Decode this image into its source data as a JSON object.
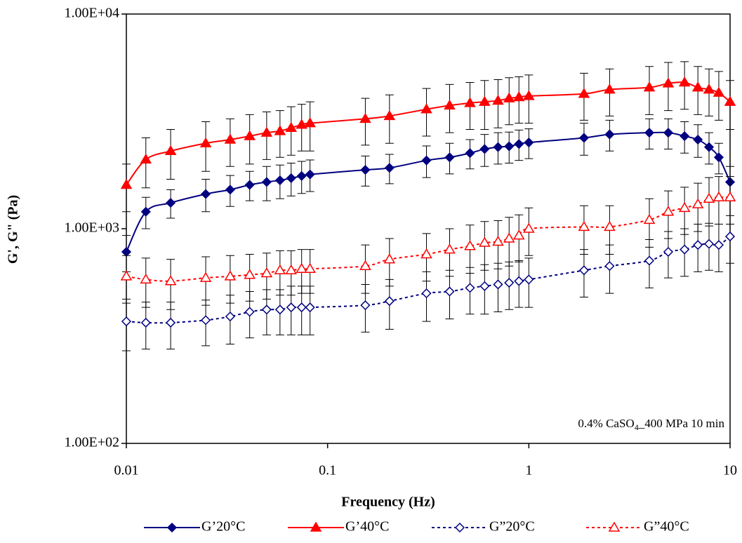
{
  "chart_data": {
    "type": "scatter",
    "x_label": "Frequency (Hz)",
    "y_label": "G', G\" (Pa)",
    "annotation": [
      "0.4% CaSO",
      "4",
      "_400 MPa 10 min"
    ],
    "xscale": "log",
    "yscale": "log",
    "xlim": [
      0.01,
      10
    ],
    "ylim": [
      100,
      10000
    ],
    "xticks": [
      0.01,
      0.1,
      1,
      10
    ],
    "yticks": [
      {
        "value": 100,
        "label": "1.00E+02"
      },
      {
        "value": 1000,
        "label": "1.00E+03"
      },
      {
        "value": 10000,
        "label": "1.00E+04"
      }
    ],
    "legend": "bottom",
    "x": [
      0.01,
      0.0125,
      0.0166,
      0.0248,
      0.0328,
      0.041,
      0.0498,
      0.058,
      0.0659,
      0.0743,
      0.0818,
      0.154,
      0.203,
      0.31,
      0.404,
      0.51,
      0.603,
      0.703,
      0.798,
      0.893,
      1,
      1.88,
      2.52,
      3.97,
      4.93,
      5.94,
      6.92,
      7.86,
      8.79,
      10
    ],
    "series": [
      {
        "name": "G’20°C",
        "color": "#000080",
        "marker": "diamond",
        "filled": true,
        "dashed": false,
        "values": [
          780,
          1200,
          1320,
          1450,
          1520,
          1600,
          1650,
          1680,
          1720,
          1760,
          1790,
          1880,
          1920,
          2080,
          2150,
          2250,
          2350,
          2400,
          2420,
          2480,
          2520,
          2650,
          2750,
          2800,
          2800,
          2700,
          2600,
          2400,
          2150,
          1650
        ],
        "errors": [
          150,
          200,
          200,
          250,
          250,
          250,
          300,
          300,
          300,
          300,
          300,
          300,
          300,
          350,
          350,
          350,
          400,
          400,
          400,
          400,
          400,
          450,
          450,
          450,
          450,
          450,
          450,
          400,
          350,
          300
        ]
      },
      {
        "name": "G’40°C",
        "color": "#ff0000",
        "marker": "triangle",
        "filled": true,
        "dashed": false,
        "values": [
          1600,
          2100,
          2300,
          2500,
          2600,
          2700,
          2800,
          2850,
          2950,
          3050,
          3100,
          3250,
          3350,
          3600,
          3750,
          3850,
          3900,
          3950,
          4050,
          4100,
          4150,
          4250,
          4450,
          4550,
          4750,
          4800,
          4550,
          4450,
          4300,
          3900
        ],
        "errors": [
          400,
          550,
          600,
          650,
          650,
          700,
          700,
          700,
          750,
          750,
          800,
          800,
          850,
          900,
          950,
          950,
          1000,
          1000,
          1000,
          1000,
          1050,
          1050,
          1100,
          1150,
          1200,
          1200,
          1150,
          1100,
          1100,
          1000
        ]
      },
      {
        "name": "G”20°C",
        "color": "#000080",
        "marker": "diamond",
        "filled": false,
        "dashed": true,
        "values": [
          370,
          365,
          365,
          375,
          390,
          410,
          420,
          420,
          430,
          430,
          430,
          440,
          460,
          500,
          510,
          530,
          540,
          550,
          560,
          570,
          580,
          640,
          670,
          710,
          780,
          800,
          840,
          850,
          840,
          920
        ],
        "errors": [
          100,
          90,
          90,
          90,
          100,
          100,
          100,
          100,
          110,
          110,
          110,
          110,
          120,
          130,
          130,
          130,
          140,
          140,
          140,
          140,
          150,
          160,
          170,
          180,
          190,
          200,
          210,
          210,
          210,
          230
        ]
      },
      {
        "name": "G”40°C",
        "color": "#ff0000",
        "marker": "triangle",
        "filled": false,
        "dashed": true,
        "values": [
          600,
          580,
          570,
          590,
          600,
          610,
          620,
          640,
          640,
          650,
          650,
          670,
          720,
          760,
          800,
          830,
          860,
          870,
          900,
          930,
          1000,
          1020,
          1020,
          1100,
          1200,
          1250,
          1300,
          1380,
          1400,
          1400
        ],
        "errors": [
          150,
          150,
          150,
          150,
          150,
          150,
          150,
          150,
          150,
          150,
          150,
          170,
          180,
          190,
          200,
          210,
          220,
          220,
          230,
          230,
          250,
          260,
          260,
          280,
          300,
          310,
          330,
          350,
          350,
          350
        ]
      }
    ]
  }
}
